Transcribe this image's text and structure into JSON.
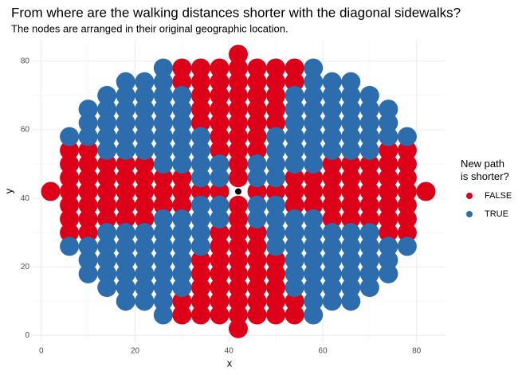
{
  "chart_data": {
    "type": "scatter",
    "title": "From where are the walking distances shorter with the diagonal sidewalks?",
    "subtitle": "The nodes are arranged in their original geographic location.",
    "x_label": "x",
    "y_label": "y",
    "legend_title": "New path\nis shorter?",
    "legend_position": "right",
    "grid": true,
    "xlim": [
      -2,
      86
    ],
    "ylim": [
      -2,
      86
    ],
    "xticks": [
      0,
      20,
      40,
      60,
      80
    ],
    "yticks": [
      0,
      20,
      40,
      60,
      80
    ],
    "series": [
      {
        "name": "FALSE",
        "color": "#dc0018",
        "x": [
          42,
          30,
          34,
          38,
          42,
          46,
          50,
          54,
          30,
          34,
          38,
          42,
          46,
          50,
          54,
          34,
          38,
          42,
          46,
          50,
          34,
          38,
          42,
          46,
          50,
          34,
          38,
          42,
          46,
          50,
          38,
          42,
          46,
          6,
          10,
          38,
          42,
          46,
          74,
          78,
          6,
          10,
          14,
          18,
          22,
          42,
          62,
          66,
          70,
          74,
          78,
          6,
          10,
          14,
          18,
          22,
          26,
          30,
          42,
          54,
          58,
          62,
          66,
          70,
          74,
          78,
          2,
          6,
          10,
          14,
          18,
          22,
          26,
          30,
          34,
          38,
          46,
          50,
          54,
          58,
          62,
          66,
          70,
          74,
          78,
          82,
          6,
          10,
          14,
          18,
          22,
          26,
          30,
          42,
          54,
          58,
          62,
          66,
          70,
          74,
          78,
          6,
          10,
          14,
          18,
          22,
          42,
          62,
          66,
          70,
          74,
          78,
          6,
          10,
          38,
          42,
          46,
          74,
          78,
          38,
          42,
          46,
          34,
          38,
          42,
          46,
          50,
          34,
          38,
          42,
          46,
          50,
          34,
          38,
          42,
          46,
          50,
          30,
          34,
          38,
          42,
          46,
          50,
          54,
          30,
          34,
          38,
          42,
          46,
          50,
          54,
          42
        ],
        "y": [
          82,
          78,
          78,
          78,
          78,
          78,
          78,
          78,
          74,
          74,
          74,
          74,
          74,
          74,
          74,
          70,
          70,
          70,
          70,
          70,
          66,
          66,
          66,
          66,
          66,
          62,
          62,
          62,
          62,
          62,
          58,
          58,
          58,
          54,
          54,
          54,
          54,
          54,
          54,
          54,
          50,
          50,
          50,
          50,
          50,
          50,
          50,
          50,
          50,
          50,
          50,
          46,
          46,
          46,
          46,
          46,
          46,
          46,
          46,
          46,
          46,
          46,
          46,
          46,
          46,
          46,
          42,
          42,
          42,
          42,
          42,
          42,
          42,
          42,
          42,
          42,
          42,
          42,
          42,
          42,
          42,
          42,
          42,
          42,
          42,
          42,
          38,
          38,
          38,
          38,
          38,
          38,
          38,
          38,
          38,
          38,
          38,
          38,
          38,
          38,
          38,
          34,
          34,
          34,
          34,
          34,
          34,
          34,
          34,
          34,
          34,
          34,
          30,
          30,
          30,
          30,
          30,
          30,
          30,
          26,
          26,
          26,
          22,
          22,
          22,
          22,
          22,
          18,
          18,
          18,
          18,
          18,
          14,
          14,
          14,
          14,
          14,
          10,
          10,
          10,
          10,
          10,
          10,
          10,
          6,
          6,
          6,
          6,
          6,
          6,
          6,
          2
        ]
      },
      {
        "name": "TRUE",
        "color": "#2e6dad",
        "x": [
          26,
          58,
          18,
          22,
          26,
          58,
          62,
          66,
          14,
          18,
          22,
          26,
          30,
          54,
          58,
          62,
          66,
          70,
          10,
          14,
          18,
          22,
          26,
          30,
          54,
          58,
          62,
          66,
          70,
          74,
          10,
          14,
          18,
          22,
          26,
          30,
          54,
          58,
          62,
          66,
          70,
          74,
          6,
          10,
          14,
          18,
          22,
          26,
          30,
          34,
          50,
          54,
          58,
          62,
          66,
          70,
          74,
          78,
          14,
          18,
          22,
          26,
          30,
          34,
          50,
          54,
          58,
          62,
          66,
          70,
          26,
          30,
          34,
          38,
          46,
          50,
          54,
          58,
          34,
          38,
          46,
          50,
          34,
          38,
          46,
          50,
          26,
          30,
          34,
          38,
          46,
          50,
          54,
          58,
          14,
          18,
          22,
          26,
          30,
          34,
          50,
          54,
          58,
          62,
          66,
          70,
          6,
          10,
          14,
          18,
          22,
          26,
          30,
          34,
          50,
          54,
          58,
          62,
          66,
          70,
          74,
          78,
          10,
          14,
          18,
          22,
          26,
          30,
          54,
          58,
          62,
          66,
          70,
          74,
          10,
          14,
          18,
          22,
          26,
          30,
          54,
          58,
          62,
          66,
          70,
          74,
          14,
          18,
          22,
          26,
          30,
          54,
          58,
          62,
          66,
          70,
          18,
          22,
          26,
          58,
          62,
          66,
          26,
          58
        ],
        "y": [
          78,
          78,
          74,
          74,
          74,
          74,
          74,
          74,
          70,
          70,
          70,
          70,
          70,
          70,
          70,
          70,
          70,
          70,
          66,
          66,
          66,
          66,
          66,
          66,
          66,
          66,
          66,
          66,
          66,
          66,
          62,
          62,
          62,
          62,
          62,
          62,
          62,
          62,
          62,
          62,
          62,
          62,
          58,
          58,
          58,
          58,
          58,
          58,
          58,
          58,
          58,
          58,
          58,
          58,
          58,
          58,
          58,
          58,
          54,
          54,
          54,
          54,
          54,
          54,
          54,
          54,
          54,
          54,
          54,
          54,
          50,
          50,
          50,
          50,
          50,
          50,
          50,
          50,
          46,
          46,
          46,
          46,
          38,
          38,
          38,
          38,
          34,
          34,
          34,
          34,
          34,
          34,
          34,
          34,
          30,
          30,
          30,
          30,
          30,
          30,
          30,
          30,
          30,
          30,
          30,
          30,
          26,
          26,
          26,
          26,
          26,
          26,
          26,
          26,
          26,
          26,
          26,
          26,
          26,
          26,
          26,
          26,
          22,
          22,
          22,
          22,
          22,
          22,
          22,
          22,
          22,
          22,
          22,
          22,
          18,
          18,
          18,
          18,
          18,
          18,
          18,
          18,
          18,
          18,
          18,
          18,
          14,
          14,
          14,
          14,
          14,
          14,
          14,
          14,
          14,
          14,
          10,
          10,
          10,
          10,
          10,
          10,
          6,
          6
        ]
      }
    ],
    "highlight": {
      "x": 42,
      "y": 42,
      "color": "#000000"
    }
  }
}
